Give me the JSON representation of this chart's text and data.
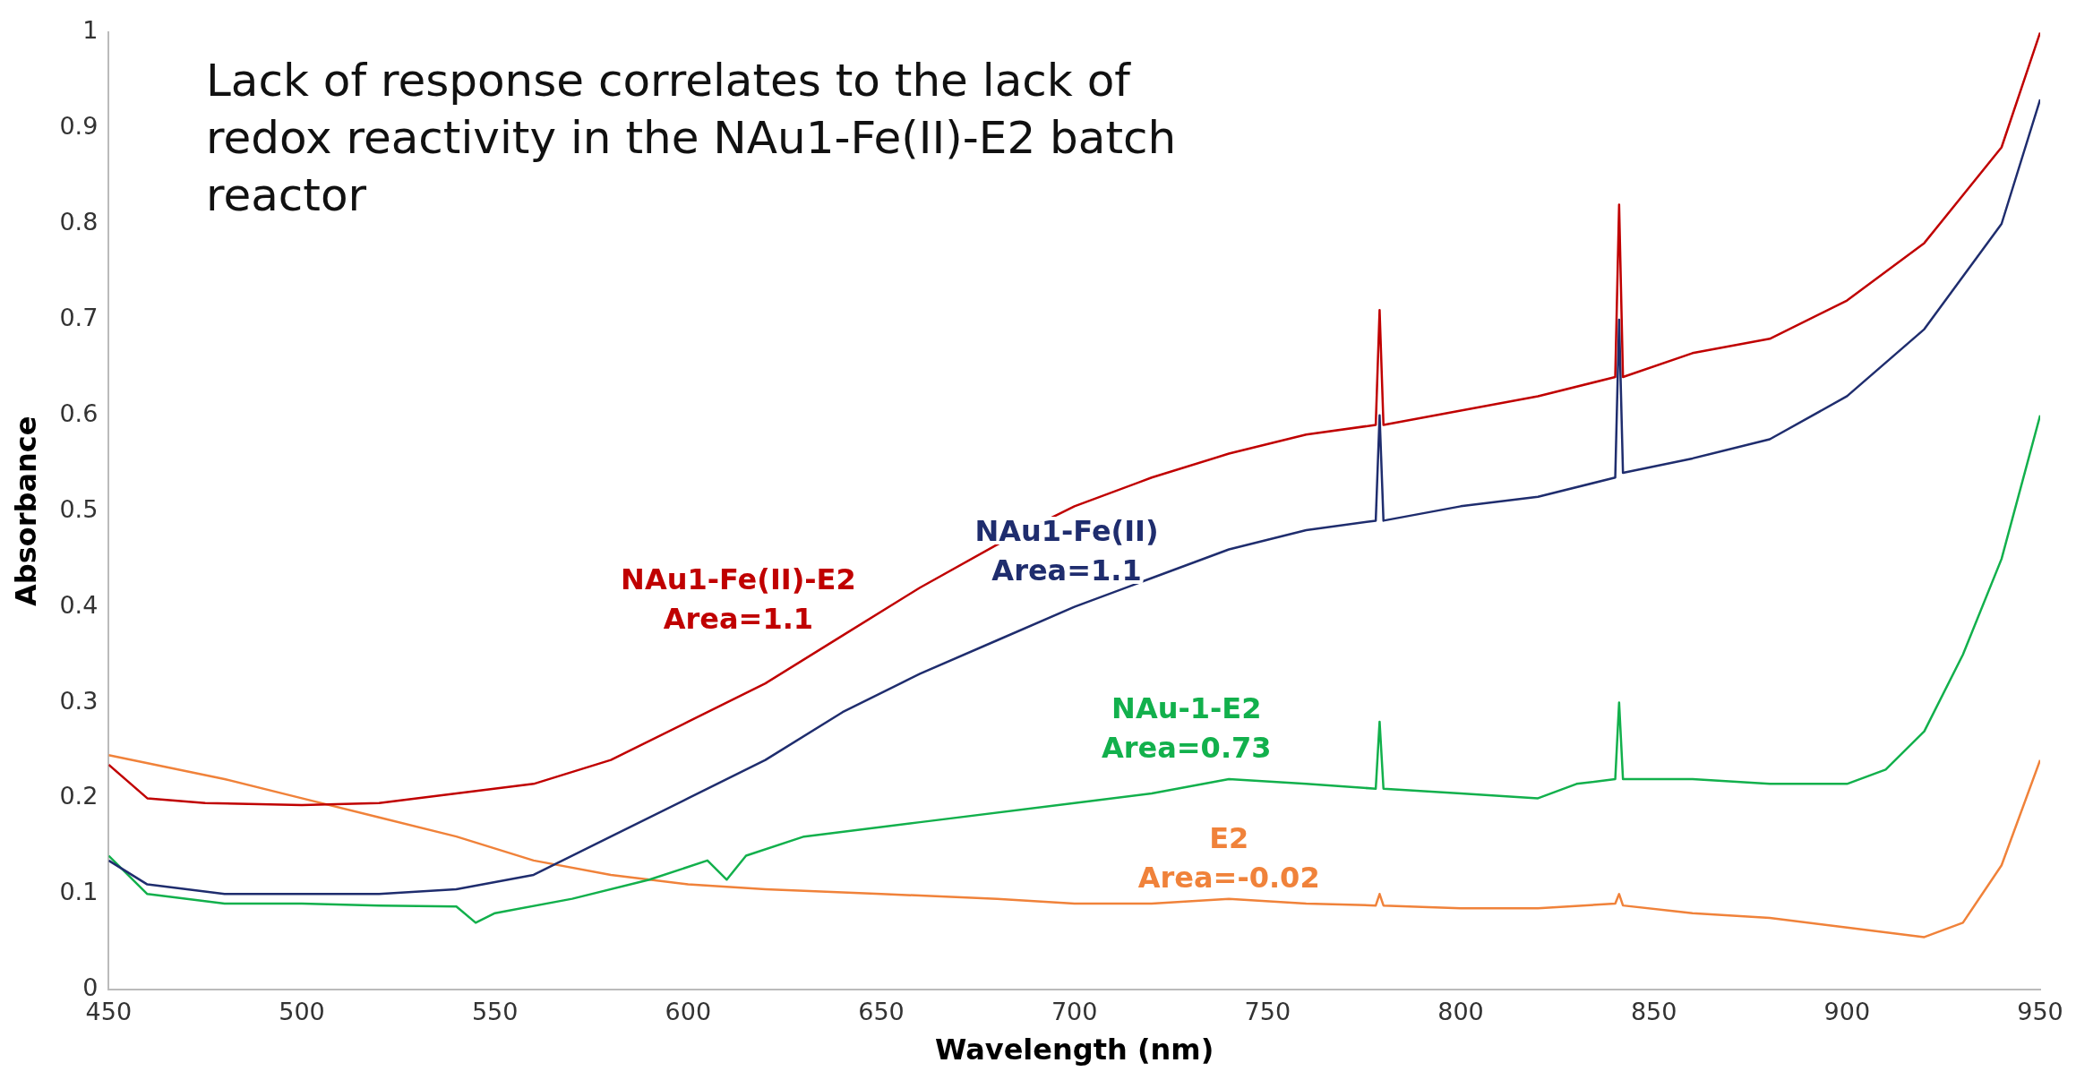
{
  "chart_data": {
    "type": "line",
    "title": "Lack of response correlates to the lack of redox reactivity in the NAu1-Fe(II)-E2 batch reactor",
    "xlabel": "Wavelength (nm)",
    "ylabel": "Absorbance",
    "xlim": [
      450,
      950
    ],
    "xticks": [
      450,
      500,
      550,
      600,
      650,
      700,
      750,
      800,
      850,
      900,
      950
    ],
    "ylim": [
      0,
      1
    ],
    "yticks": [
      0,
      0.1,
      0.2,
      0.3,
      0.4,
      0.5,
      0.6,
      0.7,
      0.8,
      0.9,
      1
    ],
    "grid": false,
    "legend": false,
    "marker": "none",
    "line_style": "solid",
    "series": [
      {
        "name": "NAu1-Fe(II)-E2",
        "color": "#c00000",
        "x": [
          450,
          460,
          475,
          500,
          520,
          540,
          560,
          580,
          600,
          620,
          640,
          660,
          680,
          700,
          720,
          740,
          760,
          778,
          779,
          780,
          800,
          820,
          840,
          841,
          842,
          860,
          880,
          900,
          920,
          940,
          950
        ],
        "values": [
          0.235,
          0.2,
          0.195,
          0.193,
          0.195,
          0.205,
          0.215,
          0.24,
          0.28,
          0.32,
          0.37,
          0.42,
          0.465,
          0.505,
          0.535,
          0.56,
          0.58,
          0.59,
          0.71,
          0.59,
          0.605,
          0.62,
          0.64,
          0.82,
          0.64,
          0.665,
          0.68,
          0.72,
          0.78,
          0.88,
          1.0
        ]
      },
      {
        "name": "NAu1-Fe(II)",
        "color": "#1f2d6e",
        "x": [
          450,
          460,
          480,
          500,
          520,
          540,
          560,
          580,
          600,
          620,
          640,
          660,
          680,
          700,
          720,
          740,
          760,
          778,
          779,
          780,
          800,
          820,
          840,
          841,
          842,
          860,
          880,
          900,
          920,
          940,
          950
        ],
        "values": [
          0.135,
          0.11,
          0.1,
          0.1,
          0.1,
          0.105,
          0.12,
          0.16,
          0.2,
          0.24,
          0.29,
          0.33,
          0.365,
          0.4,
          0.43,
          0.46,
          0.48,
          0.49,
          0.6,
          0.49,
          0.505,
          0.515,
          0.535,
          0.7,
          0.54,
          0.555,
          0.575,
          0.62,
          0.69,
          0.8,
          0.93
        ]
      },
      {
        "name": "NAu-1-E2",
        "color": "#12b04c",
        "x": [
          450,
          460,
          480,
          500,
          520,
          540,
          545,
          550,
          570,
          590,
          605,
          610,
          615,
          630,
          660,
          700,
          720,
          740,
          760,
          778,
          779,
          780,
          800,
          820,
          830,
          840,
          841,
          842,
          860,
          880,
          900,
          910,
          920,
          930,
          940,
          950
        ],
        "values": [
          0.14,
          0.1,
          0.09,
          0.09,
          0.088,
          0.087,
          0.07,
          0.08,
          0.095,
          0.115,
          0.135,
          0.115,
          0.14,
          0.16,
          0.175,
          0.195,
          0.205,
          0.22,
          0.215,
          0.21,
          0.28,
          0.21,
          0.205,
          0.2,
          0.215,
          0.22,
          0.3,
          0.22,
          0.22,
          0.215,
          0.215,
          0.23,
          0.27,
          0.35,
          0.45,
          0.6
        ]
      },
      {
        "name": "E2",
        "color": "#f0823a",
        "x": [
          450,
          480,
          500,
          520,
          540,
          560,
          580,
          600,
          620,
          650,
          680,
          700,
          720,
          740,
          760,
          778,
          779,
          780,
          800,
          820,
          840,
          841,
          842,
          860,
          880,
          900,
          920,
          930,
          940,
          950
        ],
        "values": [
          0.245,
          0.22,
          0.2,
          0.18,
          0.16,
          0.135,
          0.12,
          0.11,
          0.105,
          0.1,
          0.095,
          0.09,
          0.09,
          0.095,
          0.09,
          0.088,
          0.1,
          0.088,
          0.085,
          0.085,
          0.09,
          0.1,
          0.088,
          0.08,
          0.075,
          0.065,
          0.055,
          0.07,
          0.13,
          0.24
        ]
      }
    ],
    "annotations": [
      "Area=1.1",
      "Area=1.1",
      "Area=0.73",
      "Area=-0.02"
    ]
  }
}
